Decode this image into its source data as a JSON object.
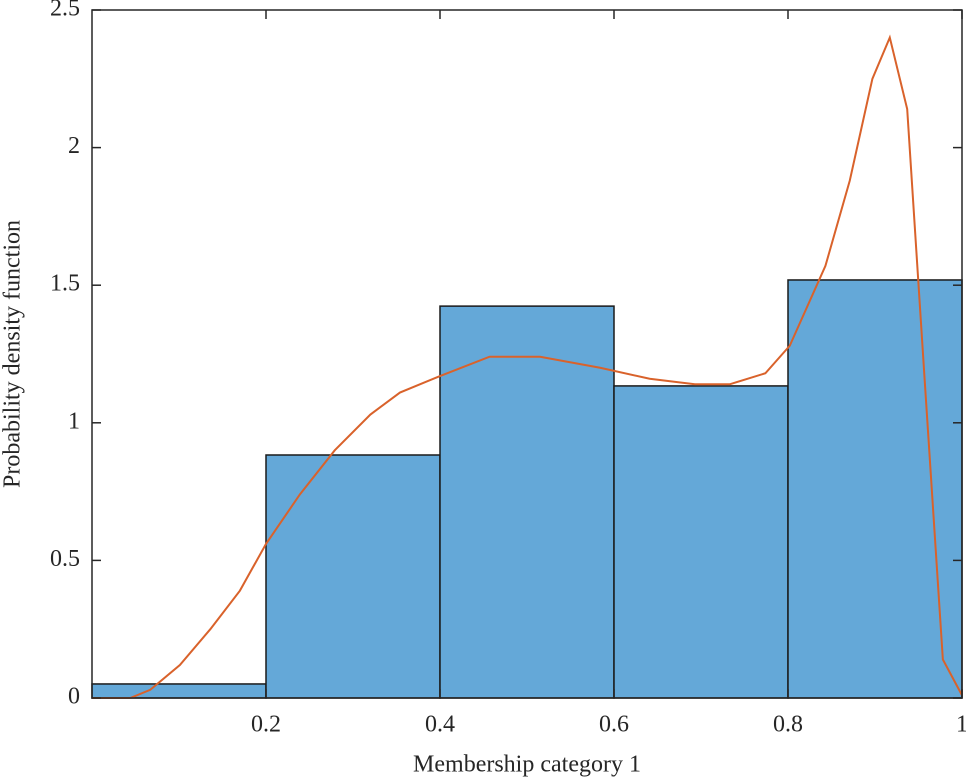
{
  "chart_data": {
    "type": "histogram",
    "xlabel": "Membership category 1",
    "ylabel": "Probability density function",
    "bins": [
      0,
      0.2,
      0.4,
      0.6,
      0.8,
      1
    ],
    "values": [
      0.051,
      0.883,
      1.424,
      1.134,
      1.519
    ],
    "color": "#64a8d8",
    "density": {
      "color": "#d9622b",
      "x": [
        0,
        0.044,
        0.067,
        0.101,
        0.136,
        0.17,
        0.2,
        0.239,
        0.279,
        0.32,
        0.354,
        0.4,
        0.457,
        0.515,
        0.584,
        0.641,
        0.693,
        0.733,
        0.774,
        0.802,
        0.843,
        0.871,
        0.897,
        0.917,
        0.937,
        0.957,
        0.978,
        1
      ],
      "values": [
        0,
        0,
        0.03,
        0.12,
        0.25,
        0.39,
        0.56,
        0.74,
        0.9,
        1.03,
        1.11,
        1.17,
        1.24,
        1.24,
        1.2,
        1.16,
        1.14,
        1.14,
        1.18,
        1.28,
        1.57,
        1.88,
        2.25,
        2.4,
        2.14,
        1.16,
        0.14,
        0.01
      ]
    },
    "xlim": [
      0,
      1
    ],
    "xticks": [
      0.2,
      0.4,
      0.6,
      0.8,
      1
    ],
    "ylim": [
      0,
      2.5
    ],
    "yticks": [
      0,
      0.5,
      1,
      1.5,
      2,
      2.5
    ]
  }
}
